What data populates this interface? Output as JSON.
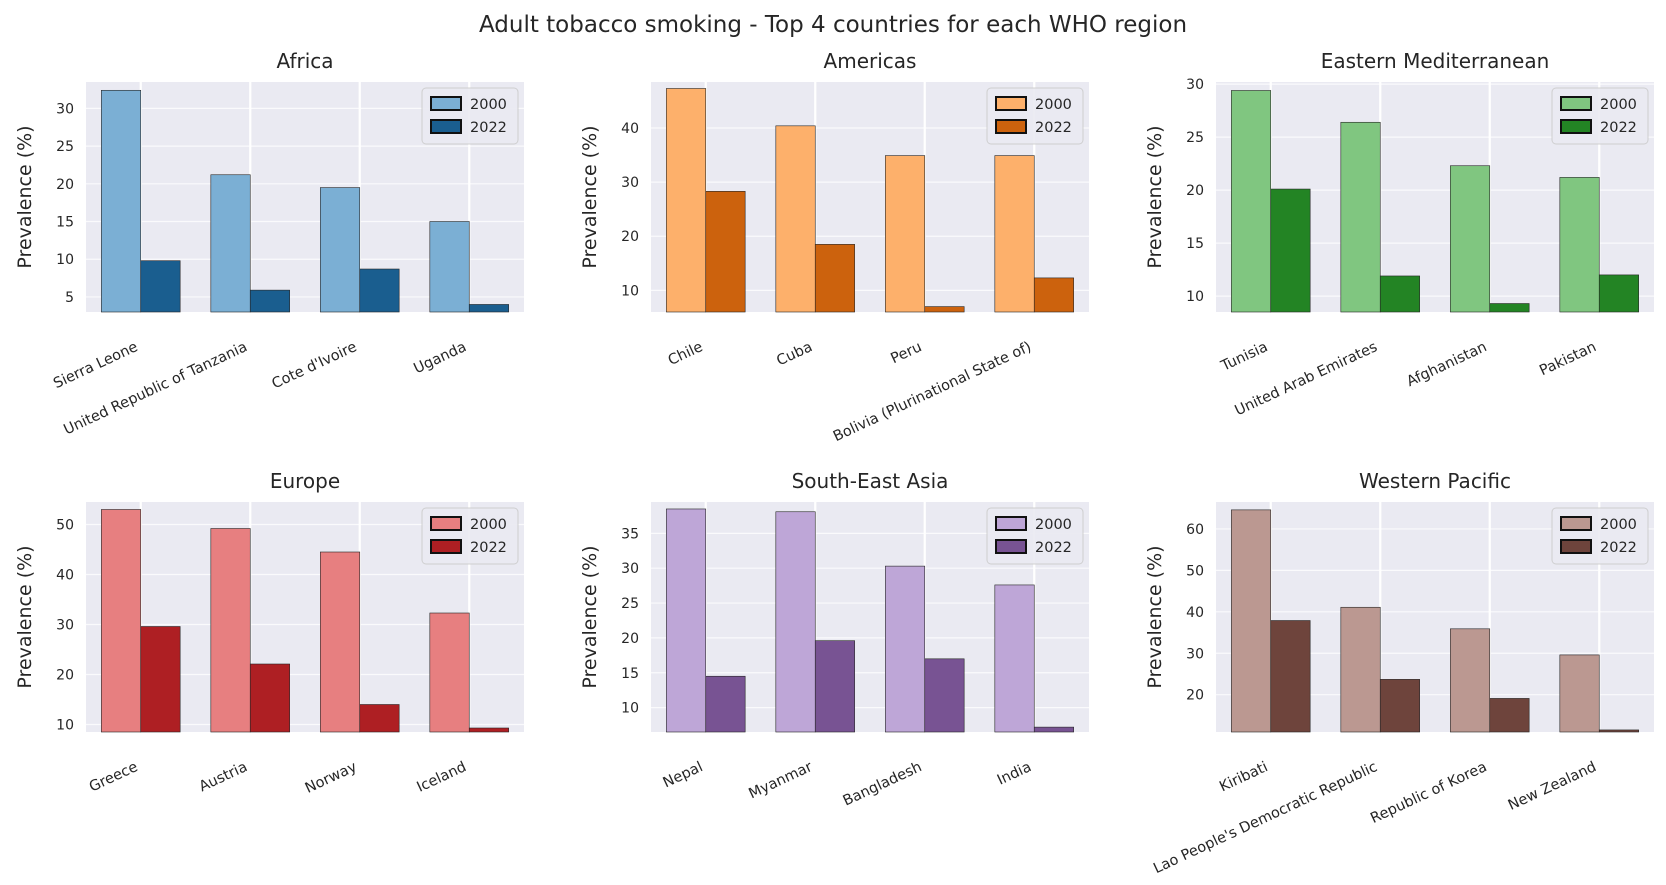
{
  "suptitle": "Adult tobacco smoking - Top 4 countries for each WHO region",
  "chart_data": [
    {
      "type": "bar",
      "title": "Africa",
      "ylabel": "Prevalence (%)",
      "categories": [
        "Sierra Leone",
        "United Republic of Tanzania",
        "Cote d'Ivoire",
        "Uganda"
      ],
      "series": [
        {
          "name": "2000",
          "values": [
            32.4,
            21.2,
            19.5,
            15.0
          ],
          "color": "#7bafd4"
        },
        {
          "name": "2022",
          "values": [
            9.8,
            5.9,
            8.7,
            4.0
          ],
          "color": "#1a5e8f"
        }
      ],
      "ylim": [
        3,
        33.5
      ],
      "yticks": [
        5,
        10,
        15,
        20,
        25,
        30
      ],
      "legend": "top-right",
      "grid": true
    },
    {
      "type": "bar",
      "title": "Americas",
      "ylabel": "Prevalence (%)",
      "categories": [
        "Chile",
        "Cuba",
        "Peru",
        "Bolivia (Plurinational State of)"
      ],
      "series": [
        {
          "name": "2000",
          "values": [
            47.3,
            40.4,
            34.9,
            34.9
          ],
          "color": "#fdb06b"
        },
        {
          "name": "2022",
          "values": [
            28.3,
            18.5,
            7.0,
            12.3
          ],
          "color": "#cc620d"
        }
      ],
      "ylim": [
        6,
        48.5
      ],
      "yticks": [
        10,
        20,
        30,
        40
      ],
      "legend": "top-right",
      "grid": true
    },
    {
      "type": "bar",
      "title": "Eastern Mediterranean",
      "ylabel": "Prevalence (%)",
      "categories": [
        "Tunisia",
        "United Arab Emirates",
        "Afghanistan",
        "Pakistan"
      ],
      "series": [
        {
          "name": "2000",
          "values": [
            29.4,
            26.4,
            22.3,
            21.2
          ],
          "color": "#80c680"
        },
        {
          "name": "2022",
          "values": [
            20.1,
            11.9,
            9.3,
            12.0
          ],
          "color": "#238424"
        }
      ],
      "ylim": [
        8.5,
        30.2
      ],
      "yticks": [
        10,
        15,
        20,
        25,
        30
      ],
      "legend": "top-right",
      "grid": true
    },
    {
      "type": "bar",
      "title": "Europe",
      "ylabel": "Prevalence (%)",
      "categories": [
        "Greece",
        "Austria",
        "Norway",
        "Iceland"
      ],
      "series": [
        {
          "name": "2000",
          "values": [
            53.0,
            49.2,
            44.5,
            32.3
          ],
          "color": "#e77f80"
        },
        {
          "name": "2022",
          "values": [
            29.6,
            22.1,
            14.0,
            9.3
          ],
          "color": "#ae1f23"
        }
      ],
      "ylim": [
        8.5,
        54.5
      ],
      "yticks": [
        10,
        20,
        30,
        40,
        50
      ],
      "legend": "top-right",
      "grid": true
    },
    {
      "type": "bar",
      "title": "South-East Asia",
      "ylabel": "Prevalence (%)",
      "categories": [
        "Nepal",
        "Myanmar",
        "Bangladesh",
        "India"
      ],
      "series": [
        {
          "name": "2000",
          "values": [
            38.5,
            38.1,
            30.3,
            27.6
          ],
          "color": "#bea6d7"
        },
        {
          "name": "2022",
          "values": [
            14.5,
            19.6,
            17.0,
            7.2
          ],
          "color": "#785393"
        }
      ],
      "ylim": [
        6.5,
        39.5
      ],
      "yticks": [
        10,
        15,
        20,
        25,
        30,
        35
      ],
      "legend": "top-right",
      "grid": true
    },
    {
      "type": "bar",
      "title": "Western Pacific",
      "ylabel": "Prevalence (%)",
      "categories": [
        "Kiribati",
        "Lao People's Democratic Republic",
        "Republic of Korea",
        "New Zealand"
      ],
      "series": [
        {
          "name": "2000",
          "values": [
            64.6,
            41.1,
            35.9,
            29.6
          ],
          "color": "#bb9891"
        },
        {
          "name": "2022",
          "values": [
            37.9,
            23.7,
            19.1,
            11.5
          ],
          "color": "#6e443c"
        }
      ],
      "ylim": [
        11,
        66.5
      ],
      "yticks": [
        20,
        30,
        40,
        50,
        60
      ],
      "legend": "top-right",
      "grid": true
    }
  ]
}
